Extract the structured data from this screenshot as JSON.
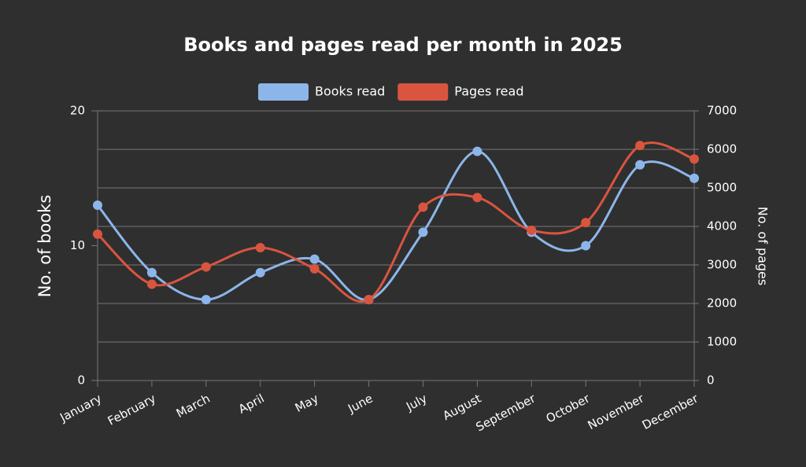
{
  "chart_data": {
    "type": "line",
    "title": "Books and pages read per month in 2025",
    "categories": [
      "January",
      "February",
      "March",
      "April",
      "May",
      "June",
      "July",
      "August",
      "September",
      "October",
      "November",
      "December"
    ],
    "series": [
      {
        "name": "Books read",
        "color": "#8cb6ea",
        "values": [
          13,
          8,
          6,
          8,
          9,
          6,
          11,
          17,
          11,
          10,
          16,
          15
        ]
      },
      {
        "name": "Pages read",
        "color": "#d9553f",
        "axis": "y2",
        "values": [
          3800,
          2500,
          2950,
          3450,
          2900,
          2100,
          4500,
          4750,
          3900,
          4100,
          6100,
          5750
        ]
      }
    ],
    "ylabel": "No. of books",
    "y2label": "No. of pages",
    "ylim": [
      0,
      20
    ],
    "yticks": [
      0,
      10,
      20
    ],
    "y2lim": [
      0,
      7000
    ],
    "y2ticks": [
      0,
      1000,
      2000,
      3000,
      4000,
      5000,
      6000,
      7000
    ],
    "grid": true,
    "legend": "top"
  }
}
